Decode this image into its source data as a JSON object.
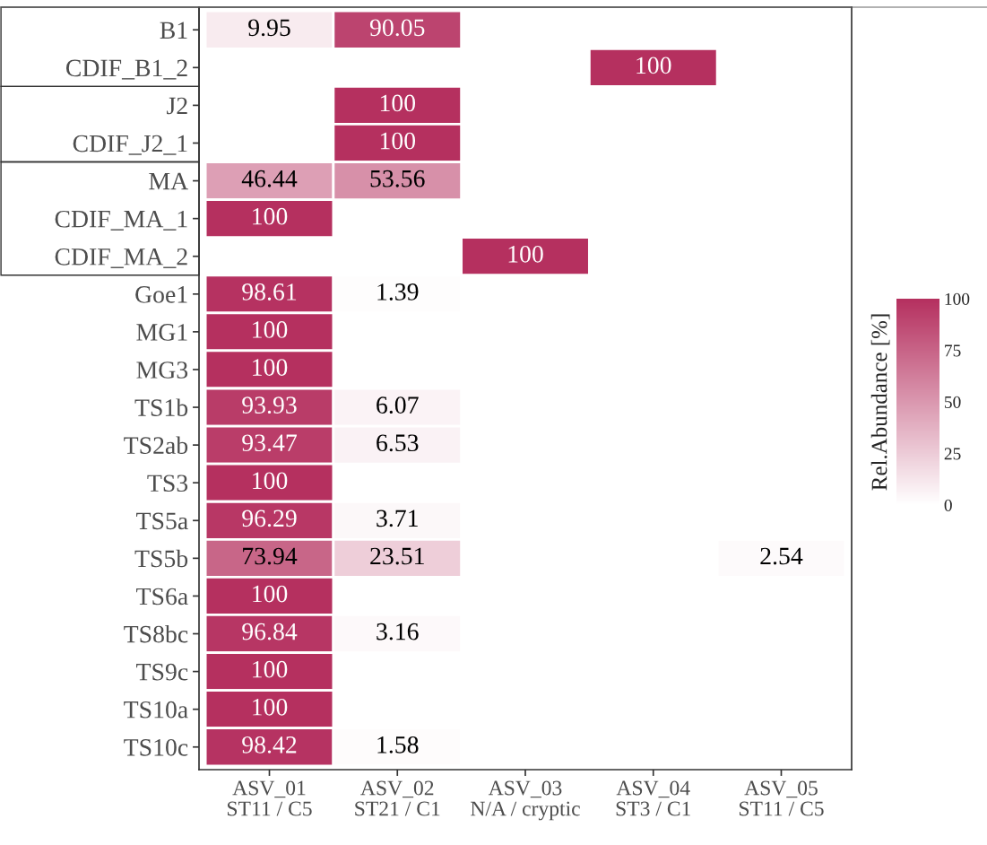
{
  "chart_data": {
    "type": "heatmap",
    "categories": [
      "ASV_01\nST11 / C5",
      "ASV_02\nST21 / C1",
      "ASV_03\nN/A / cryptic",
      "ASV_04\nST3 / C1",
      "ASV_05\nST11 / C5"
    ],
    "y_categories": [
      "B1",
      "CDIF_B1_2",
      "J2",
      "CDIF_J2_1",
      "MA",
      "CDIF_MA_1",
      "CDIF_MA_2",
      "Goe1",
      "MG1",
      "MG3",
      "TS1b",
      "TS2ab",
      "TS3",
      "TS5a",
      "TS5b",
      "TS6a",
      "TS8bc",
      "TS9c",
      "TS10a",
      "TS10c"
    ],
    "cells": [
      [
        9.95,
        90.05,
        null,
        null,
        null
      ],
      [
        null,
        null,
        null,
        100,
        null
      ],
      [
        null,
        100,
        null,
        null,
        null
      ],
      [
        null,
        100,
        null,
        null,
        null
      ],
      [
        46.44,
        53.56,
        null,
        null,
        null
      ],
      [
        100,
        null,
        null,
        null,
        null
      ],
      [
        null,
        null,
        100,
        null,
        null
      ],
      [
        98.61,
        1.39,
        null,
        null,
        null
      ],
      [
        100,
        null,
        null,
        null,
        null
      ],
      [
        100,
        null,
        null,
        null,
        null
      ],
      [
        93.93,
        6.07,
        null,
        null,
        null
      ],
      [
        93.47,
        6.53,
        null,
        null,
        null
      ],
      [
        100,
        null,
        null,
        null,
        null
      ],
      [
        96.29,
        3.71,
        null,
        null,
        null
      ],
      [
        73.94,
        23.51,
        null,
        null,
        2.54
      ],
      [
        100,
        null,
        null,
        null,
        null
      ],
      [
        96.84,
        3.16,
        null,
        null,
        null
      ],
      [
        100,
        null,
        null,
        null,
        null
      ],
      [
        100,
        null,
        null,
        null,
        null
      ],
      [
        98.42,
        1.58,
        null,
        null,
        null
      ]
    ],
    "data_labels": true,
    "color": "#b5305f",
    "clim": [
      0,
      100
    ],
    "cticks": [
      0,
      25,
      50,
      75,
      100
    ],
    "clabel": "Rel.Abundance [%]"
  }
}
